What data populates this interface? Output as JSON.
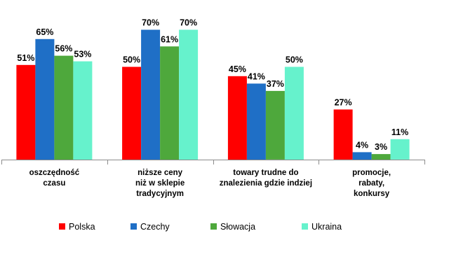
{
  "chart_data": {
    "type": "bar",
    "title": "",
    "xlabel": "",
    "ylabel": "",
    "ylim": [
      0,
      100
    ],
    "grid": false,
    "legend_position": "bottom",
    "value_suffix": "%",
    "categories": [
      [
        "oszczędność",
        "czasu"
      ],
      [
        "niższe ceny",
        "niż w sklepie",
        "tradycyjnym"
      ],
      [
        "towary trudne do",
        "znalezienia gdzie indziej"
      ],
      [
        "promocje,",
        "rabaty,",
        "konkursy"
      ]
    ],
    "series": [
      {
        "name": "Polska",
        "color": "#ff0000",
        "values": [
          51,
          50,
          45,
          27
        ]
      },
      {
        "name": "Czechy",
        "color": "#1f6fc6",
        "values": [
          65,
          70,
          41,
          4
        ]
      },
      {
        "name": "Słowacja",
        "color": "#4ea83c",
        "values": [
          56,
          61,
          37,
          3
        ]
      },
      {
        "name": "Ukraina",
        "color": "#66f2cc",
        "values": [
          53,
          70,
          50,
          11
        ]
      }
    ],
    "value_labels": [
      [
        "51%",
        "50%",
        "45%",
        "27%"
      ],
      [
        "65%",
        "70%",
        "41%",
        "4%"
      ],
      [
        "56%",
        "61%",
        "37%",
        "3%"
      ],
      [
        "53%",
        "70%",
        "50%",
        "11%"
      ]
    ]
  }
}
